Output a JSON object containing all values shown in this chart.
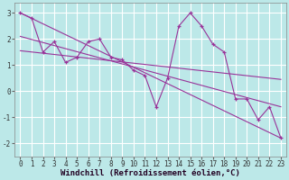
{
  "xlabel": "Windchill (Refroidissement éolien,°C)",
  "bg_color": "#bce8e8",
  "grid_color": "#ffffff",
  "line_color": "#993399",
  "x_hours": [
    0,
    1,
    2,
    3,
    4,
    5,
    6,
    7,
    8,
    9,
    10,
    11,
    12,
    13,
    14,
    15,
    16,
    17,
    18,
    19,
    20,
    21,
    22,
    23
  ],
  "y_values": [
    3.0,
    2.8,
    1.5,
    1.9,
    1.1,
    1.3,
    1.9,
    2.0,
    1.3,
    1.2,
    0.8,
    0.6,
    -0.6,
    0.5,
    2.5,
    3.0,
    2.5,
    1.8,
    1.5,
    -0.3,
    -0.3,
    -1.1,
    -0.6,
    -1.8
  ],
  "trend1_x": [
    0,
    23
  ],
  "trend1_y": [
    3.0,
    -1.8
  ],
  "trend2_x": [
    0,
    23
  ],
  "trend2_y": [
    1.55,
    0.45
  ],
  "trend3_x": [
    0,
    23
  ],
  "trend3_y": [
    2.1,
    -0.6
  ],
  "ylim": [
    -2.5,
    3.4
  ],
  "xlim": [
    -0.5,
    23.5
  ],
  "yticks": [
    -2,
    -1,
    0,
    1,
    2,
    3
  ],
  "xticks": [
    0,
    1,
    2,
    3,
    4,
    5,
    6,
    7,
    8,
    9,
    10,
    11,
    12,
    13,
    14,
    15,
    16,
    17,
    18,
    19,
    20,
    21,
    22,
    23
  ],
  "tick_fontsize": 5.5,
  "xlabel_fontsize": 6.5
}
